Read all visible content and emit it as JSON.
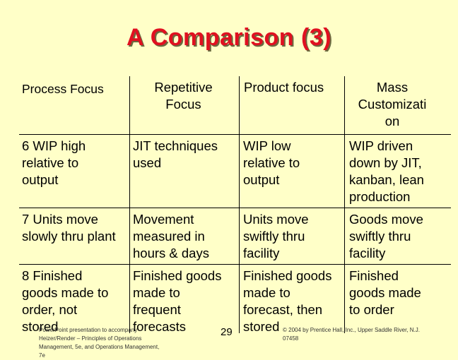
{
  "slide": {
    "title": "A Comparison (3)",
    "page_number": "29",
    "footer_left": "PowerPoint presentation to accompany\nHeizer/Render – Principles of Operations\nManagement, 5e, and Operations Management,\n7e",
    "footer_right": "© 2004 by Prentice Hall, Inc., Upper Saddle River, N.J.\n07458"
  },
  "table": {
    "headers": [
      "Process Focus",
      "Repetitive\nFocus",
      "Product focus",
      "Mass\nCustomizati\non"
    ],
    "rows": [
      [
        "6  WIP high\nrelative to\noutput",
        "JIT techniques\nused",
        "WIP low\nrelative to\noutput",
        "WIP driven\ndown by JIT,\nkanban, lean\nproduction"
      ],
      [
        "7  Units move\nslowly thru plant",
        "Movement\nmeasured in\nhours & days",
        "Units move\nswiftly thru\nfacility",
        "Goods move\nswiftly thru\nfacility"
      ],
      [
        "8  Finished\ngoods made to\norder, not\nstored",
        "Finished goods\nmade to\nfrequent\nforecasts",
        "Finished goods\nmade to\nforecast, then\nstored",
        "Finished\ngoods made\nto order"
      ]
    ]
  }
}
